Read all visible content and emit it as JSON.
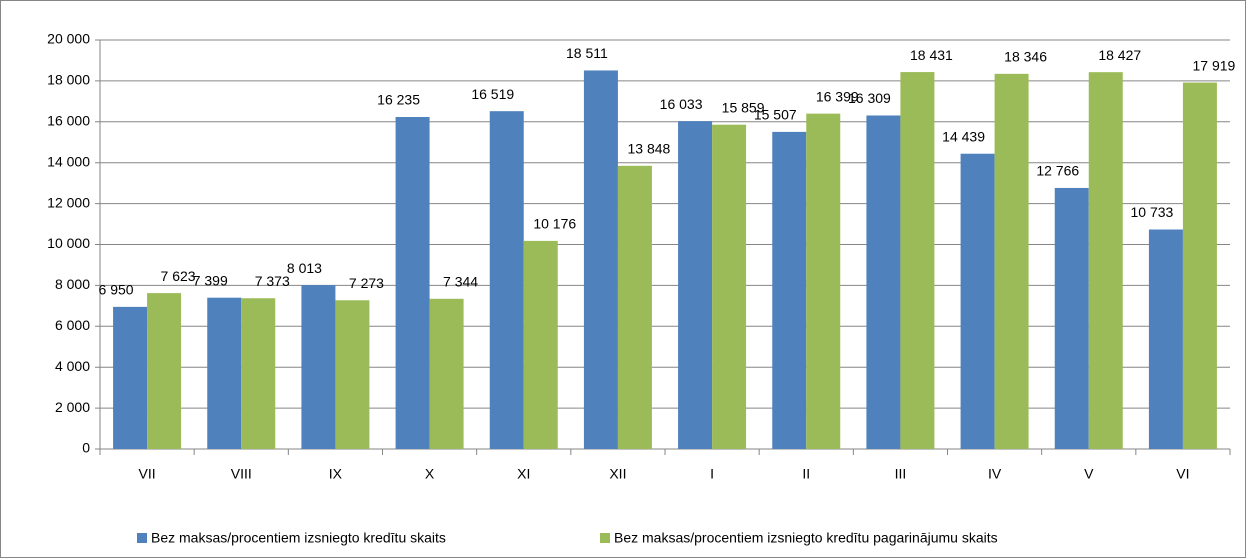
{
  "chart_data": {
    "type": "bar",
    "categories": [
      "VII",
      "VIII",
      "IX",
      "X",
      "XI",
      "XII",
      "I",
      "II",
      "III",
      "IV",
      "V",
      "VI"
    ],
    "series": [
      {
        "name": "Bez maksas/procentiem izsniegto kredītu skaits",
        "color": "#4f81bd",
        "values": [
          6950,
          7399,
          8013,
          16235,
          16519,
          18511,
          16033,
          15507,
          16309,
          14439,
          12766,
          10733
        ],
        "value_labels": [
          "6 950",
          "7 399",
          "8 013",
          "16 235",
          "16 519",
          "18 511",
          "16 033",
          "15 507",
          "16 309",
          "14 439",
          "12 766",
          "10 733"
        ]
      },
      {
        "name": "Bez maksas/procentiem izsniegto kredītu pagarinājumu skaits",
        "color": "#9bbb59",
        "values": [
          7623,
          7373,
          7273,
          7344,
          10176,
          13848,
          15859,
          16399,
          18431,
          18346,
          18427,
          17919
        ],
        "value_labels": [
          "7 623",
          "7 373",
          "7 273",
          "7 344",
          "10 176",
          "13 848",
          "15 859",
          "16 399",
          "18 431",
          "18 346",
          "18 427",
          "17 919"
        ]
      }
    ],
    "ylim": [
      0,
      20000
    ],
    "yticks": [
      0,
      {
        "value": 2000,
        "label": "2 000"
      },
      {
        "value": 4000,
        "label": "4 000"
      },
      {
        "value": 6000,
        "label": "6 000"
      },
      {
        "value": 8000,
        "label": "8 000"
      },
      {
        "value": 10000,
        "label": "10 000"
      },
      {
        "value": 12000,
        "label": "12 000"
      },
      {
        "value": 14000,
        "label": "14 000"
      },
      {
        "value": 16000,
        "label": "16 000"
      },
      {
        "value": 18000,
        "label": "18 000"
      },
      {
        "value": 20000,
        "label": "20 000"
      }
    ],
    "grid": true
  }
}
